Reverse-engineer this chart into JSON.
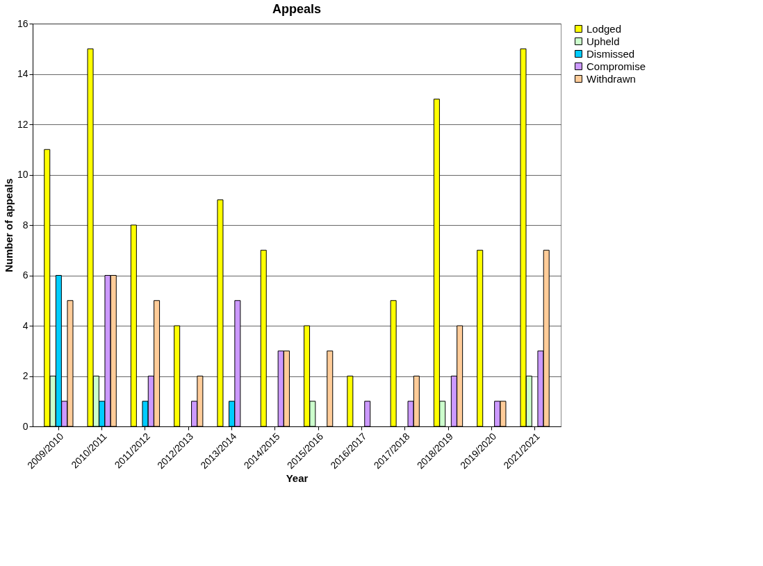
{
  "chart_data": {
    "type": "bar",
    "title": "Appeals",
    "xlabel": "Year",
    "ylabel": "Number of appeals",
    "categories": [
      "2009/2010",
      "2010/2011",
      "2011/2012",
      "2012/2013",
      "2013/2014",
      "2014/2015",
      "2015/2016",
      "2016/2017",
      "2017/2018",
      "2018/2019",
      "2019/2020",
      "2021/2021"
    ],
    "series": [
      {
        "name": "Lodged",
        "color": "#ffff00",
        "values": [
          11,
          15,
          8,
          4,
          9,
          7,
          4,
          2,
          5,
          13,
          7,
          15
        ]
      },
      {
        "name": "Upheld",
        "color": "#ccffcc",
        "values": [
          2,
          2,
          0,
          0,
          0,
          0,
          1,
          0,
          0,
          1,
          0,
          2
        ]
      },
      {
        "name": "Dismissed",
        "color": "#00ccff",
        "values": [
          6,
          1,
          1,
          0,
          1,
          0,
          0,
          0,
          0,
          0,
          0,
          0
        ]
      },
      {
        "name": "Compromise",
        "color": "#cc99ff",
        "values": [
          1,
          6,
          2,
          1,
          5,
          3,
          0,
          1,
          1,
          2,
          1,
          3
        ]
      },
      {
        "name": "Withdrawn",
        "color": "#ffcc99",
        "values": [
          5,
          6,
          5,
          2,
          0,
          3,
          3,
          0,
          2,
          4,
          1,
          7
        ]
      }
    ],
    "ylim": [
      0,
      16
    ],
    "yticks": [
      0,
      2,
      4,
      6,
      8,
      10,
      12,
      14,
      16
    ],
    "grid": "y",
    "legend": "right"
  }
}
